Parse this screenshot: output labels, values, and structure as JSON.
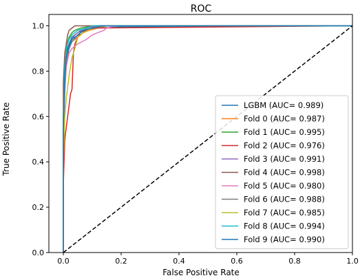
{
  "chart_data": {
    "type": "line",
    "title": "ROC",
    "xlabel": "False Positive Rate",
    "ylabel": "True Positive Rate",
    "xlim": [
      0.0,
      1.0
    ],
    "ylim": [
      0.0,
      1.0
    ],
    "xticks": [
      "0.0",
      "0.2",
      "0.4",
      "0.6",
      "0.8",
      "1.0"
    ],
    "yticks": [
      "0.0",
      "0.2",
      "0.4",
      "0.6",
      "0.8",
      "1.0"
    ],
    "grid": false,
    "legend_position": "lower-right",
    "chance_line": {
      "x": [
        0,
        1
      ],
      "y": [
        0,
        1
      ],
      "style": "dashed",
      "color": "#000000"
    },
    "series": [
      {
        "name": "LGBM (AUC= 0.989)",
        "color": "#1f77b4",
        "x": [
          0,
          0,
          0.005,
          0.01,
          0.02,
          0.03,
          0.05,
          0.08,
          0.12,
          0.2,
          0.5,
          1.0
        ],
        "y": [
          0,
          0.5,
          0.8,
          0.88,
          0.92,
          0.95,
          0.97,
          0.985,
          0.99,
          0.995,
          0.998,
          1.0
        ]
      },
      {
        "name": "Fold 0 (AUC= 0.987)",
        "color": "#ff7f0e",
        "x": [
          0,
          0,
          0.005,
          0.01,
          0.02,
          0.03,
          0.05,
          0.07,
          0.09,
          0.12,
          0.15,
          1.0
        ],
        "y": [
          0,
          0.45,
          0.7,
          0.82,
          0.9,
          0.93,
          0.95,
          0.97,
          0.98,
          0.99,
          1.0,
          1.0
        ]
      },
      {
        "name": "Fold 1 (AUC= 0.995)",
        "color": "#2ca02c",
        "x": [
          0,
          0,
          0.005,
          0.01,
          0.015,
          0.02,
          0.03,
          0.04,
          0.06,
          0.1,
          1.0
        ],
        "y": [
          0,
          0.6,
          0.8,
          0.88,
          0.93,
          0.95,
          0.97,
          0.98,
          0.99,
          1.0,
          1.0
        ]
      },
      {
        "name": "Fold 2 (AUC= 0.976)",
        "color": "#d62728",
        "x": [
          0,
          0,
          0.005,
          0.01,
          0.015,
          0.02,
          0.025,
          0.03,
          0.035,
          0.04,
          0.05,
          0.06,
          0.08,
          0.1,
          1.0
        ],
        "y": [
          0,
          0.3,
          0.5,
          0.55,
          0.6,
          0.65,
          0.7,
          0.72,
          0.88,
          0.92,
          0.95,
          0.97,
          0.98,
          0.99,
          1.0
        ]
      },
      {
        "name": "Fold 3 (AUC= 0.991)",
        "color": "#9467bd",
        "x": [
          0,
          0,
          0.005,
          0.01,
          0.02,
          0.03,
          0.04,
          0.06,
          0.08,
          0.12,
          1.0
        ],
        "y": [
          0,
          0.55,
          0.75,
          0.85,
          0.9,
          0.94,
          0.96,
          0.98,
          0.99,
          1.0,
          1.0
        ]
      },
      {
        "name": "Fold 4 (AUC= 0.998)",
        "color": "#8c564b",
        "x": [
          0,
          0,
          0.005,
          0.01,
          0.015,
          0.02,
          0.03,
          0.04,
          0.05,
          1.0
        ],
        "y": [
          0,
          0.75,
          0.88,
          0.92,
          0.96,
          0.98,
          0.99,
          1.0,
          1.0,
          1.0
        ]
      },
      {
        "name": "Fold 5 (AUC= 0.980)",
        "color": "#e377c2",
        "x": [
          0,
          0,
          0.005,
          0.01,
          0.02,
          0.03,
          0.05,
          0.08,
          0.1,
          0.12,
          0.14,
          0.15,
          0.18,
          1.0
        ],
        "y": [
          0,
          0.5,
          0.72,
          0.82,
          0.88,
          0.9,
          0.92,
          0.94,
          0.96,
          0.97,
          0.98,
          0.99,
          1.0,
          1.0
        ]
      },
      {
        "name": "Fold 6 (AUC= 0.988)",
        "color": "#7f7f7f",
        "x": [
          0,
          0,
          0.005,
          0.01,
          0.02,
          0.03,
          0.05,
          0.07,
          0.1,
          0.15,
          1.0
        ],
        "y": [
          0,
          0.5,
          0.75,
          0.85,
          0.9,
          0.93,
          0.96,
          0.98,
          0.99,
          1.0,
          1.0
        ]
      },
      {
        "name": "Fold 7 (AUC= 0.985)",
        "color": "#bcbd22",
        "x": [
          0,
          0,
          0.005,
          0.01,
          0.02,
          0.03,
          0.04,
          0.05,
          0.07,
          0.1,
          0.13,
          1.0
        ],
        "y": [
          0,
          0.4,
          0.6,
          0.68,
          0.78,
          0.86,
          0.9,
          0.95,
          0.97,
          0.99,
          1.0,
          1.0
        ]
      },
      {
        "name": "Fold 8 (AUC= 0.994)",
        "color": "#17becf",
        "x": [
          0,
          0,
          0.005,
          0.01,
          0.02,
          0.03,
          0.05,
          0.08,
          0.1,
          1.0
        ],
        "y": [
          0,
          0.6,
          0.82,
          0.9,
          0.94,
          0.96,
          0.98,
          0.99,
          1.0,
          1.0
        ]
      },
      {
        "name": "Fold 9 (AUC= 0.990)",
        "color": "#1f77b4",
        "x": [
          0,
          0,
          0.005,
          0.01,
          0.02,
          0.03,
          0.05,
          0.07,
          0.1,
          0.13,
          1.0
        ],
        "y": [
          0,
          0.55,
          0.78,
          0.86,
          0.91,
          0.94,
          0.96,
          0.98,
          0.99,
          1.0,
          1.0
        ]
      }
    ]
  }
}
